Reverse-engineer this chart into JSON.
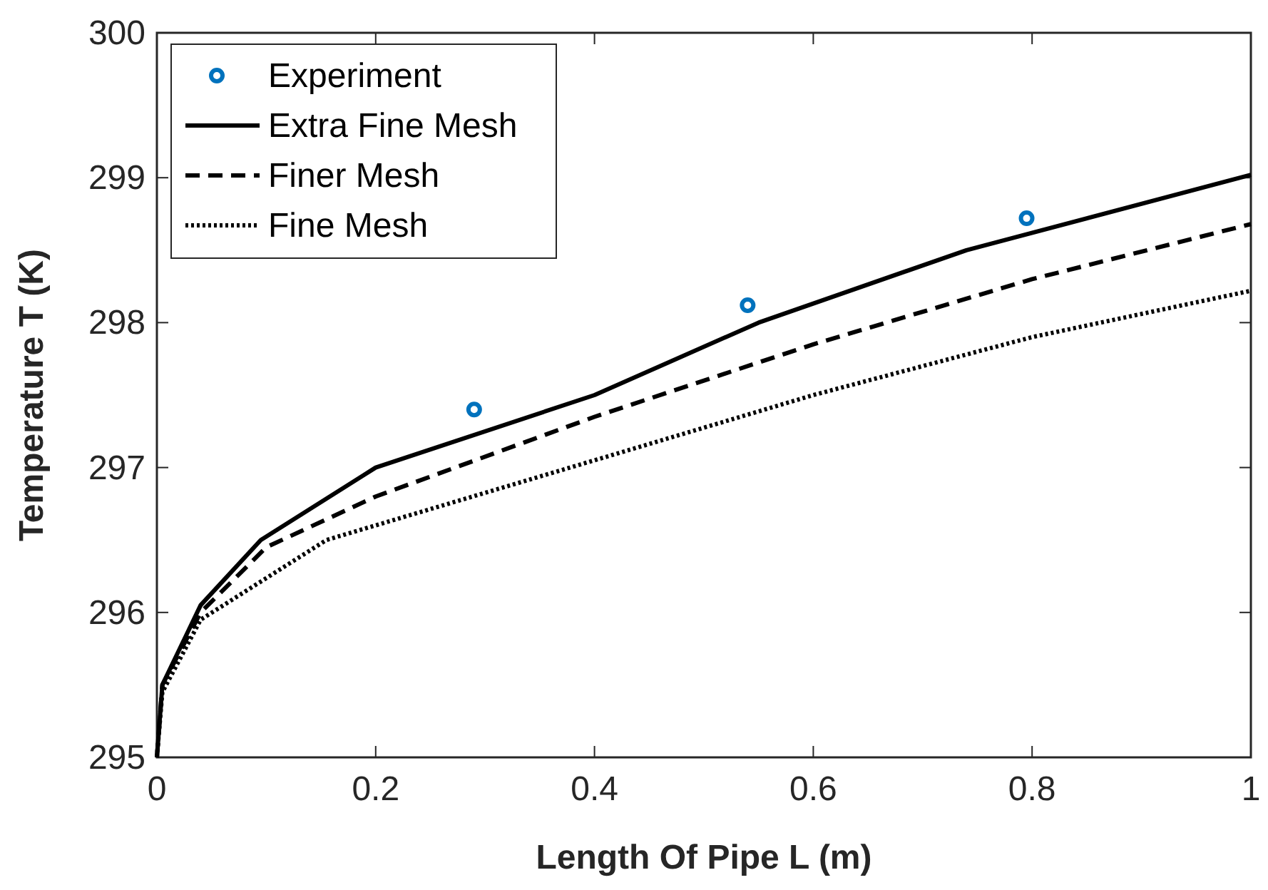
{
  "chart_data": {
    "type": "line",
    "xlabel": "Length Of Pipe  L (m)",
    "ylabel": "Temperature  T (K)",
    "xlim": [
      0,
      1
    ],
    "xticks": [
      0,
      0.2,
      0.4,
      0.6,
      0.8,
      1
    ],
    "ylim": [
      295,
      300
    ],
    "yticks": [
      295,
      296,
      297,
      298,
      299,
      300
    ],
    "grid": false,
    "legend": "top left",
    "series": [
      {
        "name": "Experiment",
        "type": "scatter",
        "marker": "circle",
        "color": "#0072bd",
        "x": [
          0.29,
          0.54,
          0.795
        ],
        "values": [
          297.4,
          298.12,
          298.72
        ]
      },
      {
        "name": "Extra Fine Mesh",
        "type": "line",
        "line_style": "solid",
        "color": "#000000",
        "x": [
          0,
          0.005,
          0.04,
          0.095,
          0.2,
          0.4,
          0.55,
          0.74,
          1
        ],
        "values": [
          295,
          295.5,
          296.05,
          296.5,
          297,
          297.5,
          298,
          298.5,
          299.02
        ]
      },
      {
        "name": "Finer Mesh",
        "type": "line",
        "line_style": "dashed",
        "color": "#000000",
        "x": [
          0,
          0.005,
          0.04,
          0.1,
          0.2,
          0.4,
          0.6,
          0.8,
          1
        ],
        "values": [
          295,
          295.5,
          296,
          296.45,
          296.8,
          297.35,
          297.85,
          298.3,
          298.68
        ]
      },
      {
        "name": "Fine Mesh",
        "type": "line",
        "line_style": "dotted",
        "color": "#000000",
        "x": [
          0,
          0.005,
          0.04,
          0.155,
          0.4,
          0.6,
          0.8,
          1
        ],
        "values": [
          295,
          295.45,
          295.95,
          296.5,
          297.05,
          297.5,
          297.9,
          298.22
        ]
      }
    ]
  }
}
